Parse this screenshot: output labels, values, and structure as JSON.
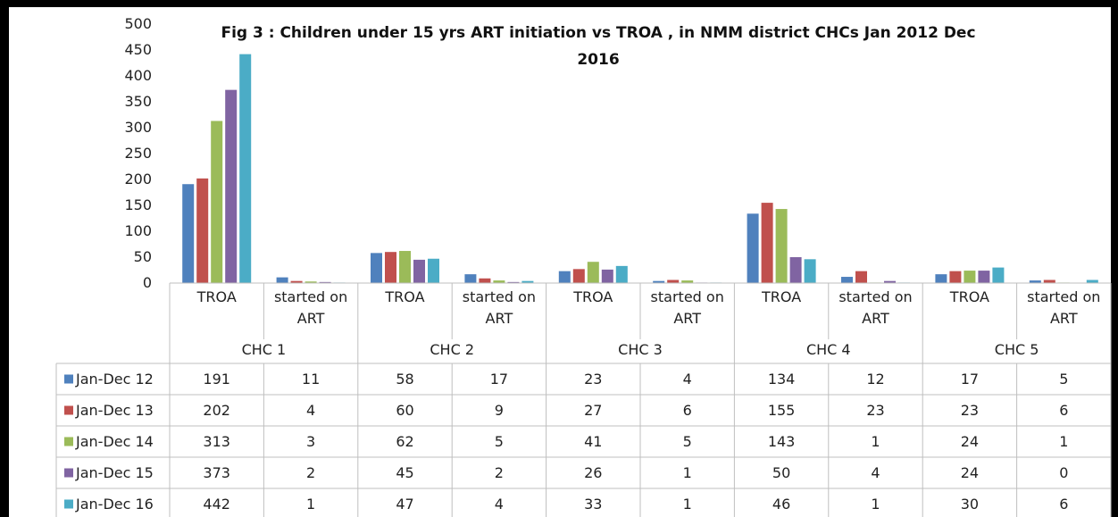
{
  "chart_data": {
    "type": "bar",
    "title": "Fig 3 : Children under 15 yrs ART initiation vs TROA , in NMM district CHCs Jan 2012  Dec\n2016",
    "categories": [
      "TROA",
      "started on ART",
      "TROA",
      "started on ART",
      "TROA",
      "started on ART",
      "TROA",
      "started on ART",
      "TROA",
      "started on ART"
    ],
    "groups": [
      "CHC 1",
      "CHC 2",
      "CHC 3",
      "CHC 4",
      "CHC 5"
    ],
    "series": [
      {
        "name": "Jan-Dec 12",
        "color": "#4f81bd",
        "values": [
          191,
          11,
          58,
          17,
          23,
          4,
          134,
          12,
          17,
          5
        ]
      },
      {
        "name": "Jan-Dec 13",
        "color": "#c0504d",
        "values": [
          202,
          4,
          60,
          9,
          27,
          6,
          155,
          23,
          23,
          6
        ]
      },
      {
        "name": "Jan-Dec 14",
        "color": "#9bbb59",
        "values": [
          313,
          3,
          62,
          5,
          41,
          5,
          143,
          1,
          24,
          1
        ]
      },
      {
        "name": "Jan-Dec 15",
        "color": "#8064a2",
        "values": [
          373,
          2,
          45,
          2,
          26,
          1,
          50,
          4,
          24,
          0
        ]
      },
      {
        "name": "Jan-Dec 16",
        "color": "#4bacc6",
        "values": [
          442,
          1,
          47,
          4,
          33,
          1,
          46,
          1,
          30,
          6
        ]
      }
    ],
    "ylim": [
      0,
      500
    ],
    "yticks": [
      0,
      50,
      100,
      150,
      200,
      250,
      300,
      350,
      400,
      450,
      500
    ],
    "grid": false,
    "data_table": true
  }
}
